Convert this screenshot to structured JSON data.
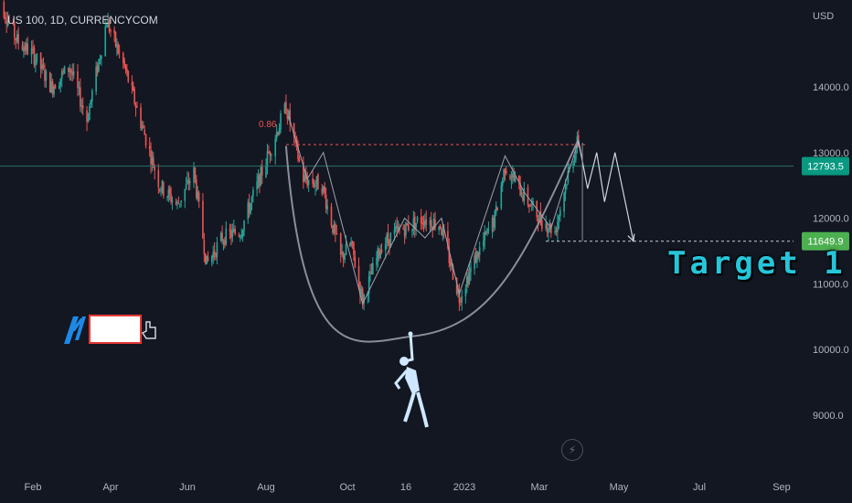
{
  "header": {
    "symbol_title": "US 100, 1D, CURRENCYCOM",
    "currency": "USD"
  },
  "annotations": {
    "fib_label": "0.86",
    "target_text": "Target 1"
  },
  "price_tags": {
    "current_price": "12793.5",
    "target_price": "11649.9"
  },
  "icons": {
    "lightning": "lightning-icon",
    "logo": "logo-icon",
    "hand": "hand-icon",
    "climber": "climber-figure-icon"
  },
  "colors": {
    "background": "#131722",
    "up": "#26a69a",
    "down": "#ef5350",
    "current_tag": "#089981",
    "target_tag": "#4caf50",
    "target_text": "#26c6da",
    "fib_line": "#ef5350"
  },
  "chart_data": {
    "type": "candlestick",
    "y_axis": {
      "ticks": [
        "14000.0",
        "13000.0",
        "12000.0",
        "11000.0",
        "10000.0",
        "9000.0"
      ],
      "range": [
        8400,
        15100
      ]
    },
    "x_axis": {
      "ticks": [
        "Feb",
        "Apr",
        "Jun",
        "Aug",
        "Oct",
        "16",
        "2023",
        "Mar",
        "May",
        "Jul",
        "Sep"
      ]
    },
    "close_path": [
      [
        "2022-01-05",
        15400
      ],
      [
        "2022-01-20",
        14700
      ],
      [
        "2022-02-01",
        14500
      ],
      [
        "2022-02-15",
        14000
      ],
      [
        "2022-03-01",
        14300
      ],
      [
        "2022-03-14",
        13500
      ],
      [
        "2022-03-29",
        15000
      ],
      [
        "2022-04-12",
        14300
      ],
      [
        "2022-04-26",
        13400
      ],
      [
        "2022-05-10",
        12500
      ],
      [
        "2022-05-24",
        12200
      ],
      [
        "2022-06-06",
        12700
      ],
      [
        "2022-06-16",
        11300
      ],
      [
        "2022-06-28",
        11700
      ],
      [
        "2022-07-12",
        11800
      ],
      [
        "2022-07-27",
        12600
      ],
      [
        "2022-08-16",
        13700
      ],
      [
        "2022-08-29",
        12600
      ],
      [
        "2022-09-12",
        12500
      ],
      [
        "2022-09-26",
        11400
      ],
      [
        "2022-10-04",
        11600
      ],
      [
        "2022-10-13",
        10750
      ],
      [
        "2022-10-28",
        11600
      ],
      [
        "2022-11-10",
        11800
      ],
      [
        "2022-11-30",
        12000
      ],
      [
        "2022-12-13",
        11900
      ],
      [
        "2022-12-28",
        10800
      ],
      [
        "2023-01-10",
        11400
      ],
      [
        "2023-01-25",
        12000
      ],
      [
        "2023-02-02",
        12800
      ],
      [
        "2023-02-15",
        12400
      ],
      [
        "2023-03-01",
        12000
      ],
      [
        "2023-03-13",
        11800
      ],
      [
        "2023-03-22",
        12600
      ],
      [
        "2023-03-31",
        13200
      ]
    ],
    "horizontal_levels": [
      {
        "label": "0.86",
        "value": 13120
      },
      {
        "label": "12793.5",
        "value": 12793.5
      },
      {
        "label": "11649.9",
        "value": 11649.9
      }
    ],
    "projection": [
      [
        "2023-03-31",
        13180
      ],
      [
        "2023-04-07",
        12450
      ],
      [
        "2023-04-14",
        13000
      ],
      [
        "2023-04-20",
        12250
      ],
      [
        "2023-04-28",
        13000
      ],
      [
        "2023-05-12",
        11650
      ]
    ],
    "cup_pattern": {
      "left_rim": [
        "2022-08-16",
        13100
      ],
      "bottom": [
        "2022-11-20",
        10200
      ],
      "right_rim": [
        "2023-03-31",
        13200
      ]
    }
  }
}
